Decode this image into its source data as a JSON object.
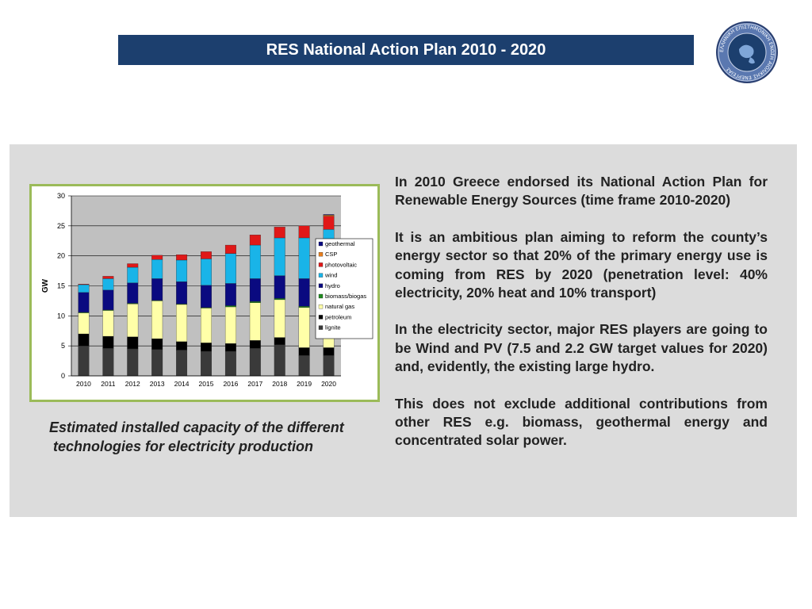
{
  "header": {
    "title": "RES National Action Plan 2010 - 2020"
  },
  "logo": {
    "icon": "emblem-seal-icon",
    "text": "ΕΛΛΗΝΙΚΗ ΕΠΙΣΤΗΜΟΝΙΚΗ ΕΝΩΣΗ ΑΙΟΛΙΚΗΣ ΕΝΕΡΓΕΙΑΣ"
  },
  "chart_data": {
    "type": "bar",
    "stacked": true,
    "categories": [
      "2010",
      "2011",
      "2012",
      "2013",
      "2014",
      "2015",
      "2016",
      "2017",
      "2018",
      "2019",
      "2020"
    ],
    "ylabel": "GW",
    "ylim": [
      0,
      30
    ],
    "yticks": [
      0,
      5,
      10,
      15,
      20,
      25,
      30
    ],
    "grid": true,
    "legend_position": "right",
    "series": [
      {
        "name": "lignite",
        "color": "#3a3a3a",
        "values": [
          5.0,
          4.6,
          4.5,
          4.4,
          4.3,
          4.1,
          4.1,
          4.6,
          5.2,
          3.4,
          3.4
        ]
      },
      {
        "name": "petroleum",
        "color": "#000000",
        "values": [
          2.0,
          2.0,
          2.0,
          1.8,
          1.4,
          1.4,
          1.3,
          1.3,
          1.2,
          1.3,
          1.3
        ]
      },
      {
        "name": "natural gas",
        "color": "#ffffa8",
        "values": [
          3.5,
          4.3,
          5.5,
          6.3,
          6.2,
          5.8,
          6.1,
          6.3,
          6.3,
          6.7,
          7.4
        ]
      },
      {
        "name": "biomass/biogas",
        "color": "#1f8a1f",
        "values": [
          0.1,
          0.1,
          0.1,
          0.1,
          0.1,
          0.1,
          0.2,
          0.2,
          0.2,
          0.2,
          0.2
        ]
      },
      {
        "name": "hydro",
        "color": "#0a0a80",
        "values": [
          3.3,
          3.3,
          3.4,
          3.6,
          3.7,
          3.7,
          3.7,
          3.8,
          3.8,
          4.6,
          4.6
        ]
      },
      {
        "name": "wind",
        "color": "#19b4e8",
        "values": [
          1.3,
          1.9,
          2.6,
          3.2,
          3.6,
          4.4,
          5.0,
          5.6,
          6.3,
          6.8,
          7.5
        ]
      },
      {
        "name": "photovoltaic",
        "color": "#e01818",
        "values": [
          0.1,
          0.4,
          0.6,
          0.7,
          0.9,
          1.2,
          1.4,
          1.7,
          1.8,
          2.0,
          2.2
        ]
      },
      {
        "name": "CSP",
        "color": "#e87e1e",
        "values": [
          0,
          0,
          0,
          0,
          0,
          0,
          0,
          0,
          0,
          0,
          0.2
        ]
      },
      {
        "name": "geothermal",
        "color": "#0a0a80",
        "values": [
          0,
          0,
          0,
          0,
          0,
          0,
          0,
          0,
          0,
          0,
          0.1
        ]
      }
    ]
  },
  "caption": {
    "line1": "Estimated installed capacity of the different",
    "line2": "technologies for electricity production"
  },
  "body": {
    "p1": "In 2010 Greece endorsed its National Action Plan for Renewable Energy Sources (time frame 2010-2020)",
    "p2": "It is an ambitious plan aiming to reform the county’s energy sector so that 20% of the primary energy use is coming from RES by 2020 (penetration level: 40% electricity, 20% heat and 10% transport)",
    "p3": "In the electricity sector, major RES players are going to be Wind and PV (7.5 and 2.2 GW target values for 2020) and, evidently, the existing large hydro.",
    "p4": "This does not exclude additional contributions from other RES e.g. biomass, geothermal energy and concentrated solar power."
  }
}
